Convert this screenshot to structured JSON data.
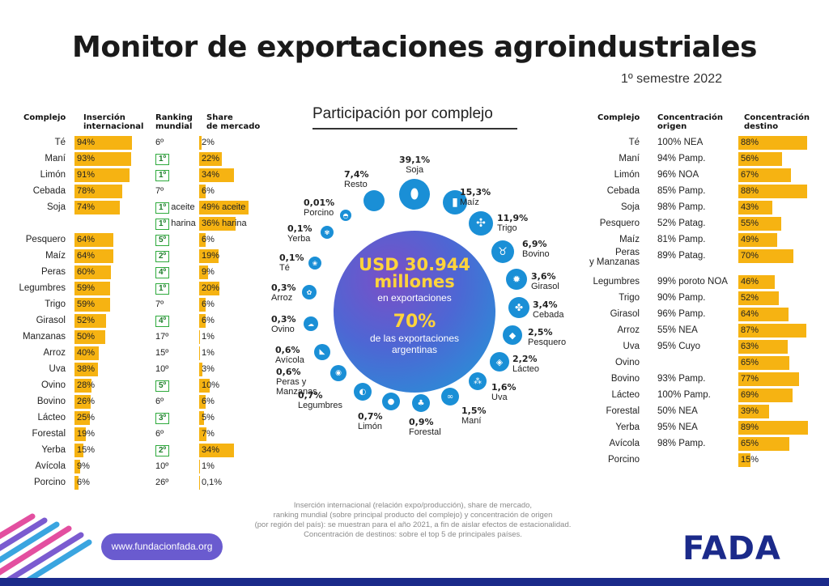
{
  "title": "Monitor de exportaciones agroindustriales",
  "subtitle": "1º semestre 2022",
  "left_headers": {
    "complejo": "Complejo",
    "insercion": [
      "Inserción",
      "internacional"
    ],
    "ranking": [
      "Ranking",
      "mundial"
    ],
    "share": [
      "Share",
      "de mercado"
    ]
  },
  "right_headers": {
    "complejo": "Complejo",
    "origen": [
      "Concentración",
      "origen"
    ],
    "destino": [
      "Concentración",
      "destino"
    ]
  },
  "center": {
    "title": "Participación por complejo",
    "amount": [
      "USD 30.944",
      "millones"
    ],
    "amount_sub": "en exportaciones",
    "pct": "70%",
    "pct_sub": [
      "de las exportaciones",
      "argentinas"
    ]
  },
  "chart_data": [
    {
      "type": "table",
      "title": "",
      "columns": [
        "Complejo",
        "Inserción internacional",
        "Ranking mundial",
        "Share de mercado"
      ],
      "rows": [
        {
          "name": "Té",
          "insercion": 94,
          "insercion_label": "94%",
          "rank": "6º",
          "rank_top": false,
          "share": 2,
          "share_label": "2%"
        },
        {
          "name": "Maní",
          "insercion": 93,
          "insercion_label": "93%",
          "rank": "1º",
          "rank_top": true,
          "share": 22,
          "share_label": "22%"
        },
        {
          "name": "Limón",
          "insercion": 91,
          "insercion_label": "91%",
          "rank": "1º",
          "rank_top": true,
          "share": 34,
          "share_label": "34%"
        },
        {
          "name": "Cebada",
          "insercion": 78,
          "insercion_label": "78%",
          "rank": "7º",
          "rank_top": false,
          "share": 6,
          "share_label": "6%"
        },
        {
          "name": "Soja",
          "insercion": 74,
          "insercion_label": "74%",
          "rank": "1º",
          "rank_top": true,
          "rank_suffix": "aceite",
          "share": 49,
          "share_label": "49% aceite"
        },
        {
          "name": "",
          "insercion": null,
          "insercion_label": "",
          "rank": "1º",
          "rank_top": true,
          "rank_suffix": "harina",
          "share": 36,
          "share_label": "36% harina"
        },
        {
          "name": "Pesquero",
          "insercion": 64,
          "insercion_label": "64%",
          "rank": "5º",
          "rank_top": true,
          "share": 6,
          "share_label": "6%"
        },
        {
          "name": "Maíz",
          "insercion": 64,
          "insercion_label": "64%",
          "rank": "2º",
          "rank_top": true,
          "share": 19,
          "share_label": "19%"
        },
        {
          "name": "Peras",
          "insercion": 60,
          "insercion_label": "60%",
          "rank": "4º",
          "rank_top": true,
          "share": 9,
          "share_label": "9%"
        },
        {
          "name": "Legumbres",
          "insercion": 59,
          "insercion_label": "59%",
          "rank": "1º",
          "rank_top": true,
          "share": 20,
          "share_label": "20%"
        },
        {
          "name": "Trigo",
          "insercion": 59,
          "insercion_label": "59%",
          "rank": "7º",
          "rank_top": false,
          "share": 6,
          "share_label": "6%"
        },
        {
          "name": "Girasol",
          "insercion": 52,
          "insercion_label": "52%",
          "rank": "4º",
          "rank_top": true,
          "share": 6,
          "share_label": "6%"
        },
        {
          "name": "Manzanas",
          "insercion": 50,
          "insercion_label": "50%",
          "rank": "17º",
          "rank_top": false,
          "share": 1,
          "share_label": "1%"
        },
        {
          "name": "Arroz",
          "insercion": 40,
          "insercion_label": "40%",
          "rank": "15º",
          "rank_top": false,
          "share": 1,
          "share_label": "1%"
        },
        {
          "name": "Uva",
          "insercion": 38,
          "insercion_label": "38%",
          "rank": "10º",
          "rank_top": false,
          "share": 3,
          "share_label": "3%"
        },
        {
          "name": "Ovino",
          "insercion": 28,
          "insercion_label": "28%",
          "rank": "5º",
          "rank_top": true,
          "share": 10,
          "share_label": "10%"
        },
        {
          "name": "Bovino",
          "insercion": 26,
          "insercion_label": "26%",
          "rank": "6º",
          "rank_top": false,
          "share": 6,
          "share_label": "6%"
        },
        {
          "name": "Lácteo",
          "insercion": 25,
          "insercion_label": "25%",
          "rank": "3º",
          "rank_top": true,
          "share": 5,
          "share_label": "5%"
        },
        {
          "name": "Forestal",
          "insercion": 19,
          "insercion_label": "19%",
          "rank": "6º",
          "rank_top": false,
          "share": 7,
          "share_label": "7%"
        },
        {
          "name": "Yerba",
          "insercion": 15,
          "insercion_label": "15%",
          "rank": "2º",
          "rank_top": true,
          "share": 34,
          "share_label": "34%"
        },
        {
          "name": "Avícola",
          "insercion": 9,
          "insercion_label": "9%",
          "rank": "10º",
          "rank_top": false,
          "share": 1,
          "share_label": "1%"
        },
        {
          "name": "Porcino",
          "insercion": 6,
          "insercion_label": "6%",
          "rank": "26º",
          "rank_top": false,
          "share": 0.1,
          "share_label": "0,1%"
        }
      ]
    },
    {
      "type": "pie",
      "title": "Participación por complejo",
      "slices": [
        {
          "name": "Soja",
          "pct": 39.1,
          "label": "39,1%",
          "icon": "soybean-icon"
        },
        {
          "name": "Maíz",
          "pct": 15.3,
          "label": "15,3%",
          "icon": "corn-icon"
        },
        {
          "name": "Trigo",
          "pct": 11.9,
          "label": "11,9%",
          "icon": "wheat-icon"
        },
        {
          "name": "Bovino",
          "pct": 6.9,
          "label": "6,9%",
          "icon": "cow-icon"
        },
        {
          "name": "Girasol",
          "pct": 3.6,
          "label": "3,6%",
          "icon": "sunflower-icon"
        },
        {
          "name": "Cebada",
          "pct": 3.4,
          "label": "3,4%",
          "icon": "barley-icon"
        },
        {
          "name": "Pesquero",
          "pct": 2.5,
          "label": "2,5%",
          "icon": "fish-icon"
        },
        {
          "name": "Lácteo",
          "pct": 2.2,
          "label": "2,2%",
          "icon": "dairy-icon"
        },
        {
          "name": "Uva",
          "pct": 1.6,
          "label": "1,6%",
          "icon": "grape-icon"
        },
        {
          "name": "Maní",
          "pct": 1.5,
          "label": "1,5%",
          "icon": "peanut-icon"
        },
        {
          "name": "Forestal",
          "pct": 0.9,
          "label": "0,9%",
          "icon": "tree-icon"
        },
        {
          "name": "Limón",
          "pct": 0.7,
          "label": "0,7%",
          "icon": "lemon-icon"
        },
        {
          "name": "Legumbres",
          "pct": 0.7,
          "label": "0,7%",
          "icon": "legume-icon"
        },
        {
          "name": "Peras y Manzanas",
          "pct": 0.6,
          "label": "0,6%",
          "icon": "apple-icon"
        },
        {
          "name": "Avícola",
          "pct": 0.6,
          "label": "0,6%",
          "icon": "chicken-icon"
        },
        {
          "name": "Ovino",
          "pct": 0.3,
          "label": "0,3%",
          "icon": "sheep-icon"
        },
        {
          "name": "Arroz",
          "pct": 0.3,
          "label": "0,3%",
          "icon": "rice-icon"
        },
        {
          "name": "Té",
          "pct": 0.1,
          "label": "0,1%",
          "icon": "tea-icon"
        },
        {
          "name": "Yerba",
          "pct": 0.1,
          "label": "0,1%",
          "icon": "yerba-icon"
        },
        {
          "name": "Porcino",
          "pct": 0.01,
          "label": "0,01%",
          "icon": "pig-icon"
        },
        {
          "name": "Resto",
          "pct": 7.4,
          "label": "7,4%",
          "icon": "rest-icon"
        }
      ]
    },
    {
      "type": "table",
      "title": "",
      "columns": [
        "Complejo",
        "Concentración origen",
        "Concentración destino"
      ],
      "rows": [
        {
          "name": "Té",
          "origen": "100% NEA",
          "destino": 88,
          "destino_label": "88%"
        },
        {
          "name": "Maní",
          "origen": "94% Pamp.",
          "destino": 56,
          "destino_label": "56%"
        },
        {
          "name": "Limón",
          "origen": "96% NOA",
          "destino": 67,
          "destino_label": "67%"
        },
        {
          "name": "Cebada",
          "origen": "85% Pamp.",
          "destino": 88,
          "destino_label": "88%"
        },
        {
          "name": "Soja",
          "origen": "98% Pamp.",
          "destino": 43,
          "destino_label": "43%"
        },
        {
          "name": "Pesquero",
          "origen": "52% Patag.",
          "destino": 55,
          "destino_label": "55%"
        },
        {
          "name": "Maíz",
          "origen": "81% Pamp.",
          "destino": 49,
          "destino_label": "49%"
        },
        {
          "name": "Peras y Manzanas",
          "origen": "89% Patag.",
          "destino": 70,
          "destino_label": "70%"
        },
        {
          "name": "Legumbres",
          "origen": "99% poroto NOA",
          "destino": 46,
          "destino_label": "46%"
        },
        {
          "name": "Trigo",
          "origen": "90% Pamp.",
          "destino": 52,
          "destino_label": "52%"
        },
        {
          "name": "Girasol",
          "origen": "96% Pamp.",
          "destino": 64,
          "destino_label": "64%"
        },
        {
          "name": "Arroz",
          "origen": "55% NEA",
          "destino": 87,
          "destino_label": "87%"
        },
        {
          "name": "Uva",
          "origen": "95% Cuyo",
          "destino": 63,
          "destino_label": "63%"
        },
        {
          "name": "Ovino",
          "origen": "",
          "destino": 65,
          "destino_label": "65%"
        },
        {
          "name": "Bovino",
          "origen": "93% Pamp.",
          "destino": 77,
          "destino_label": "77%"
        },
        {
          "name": "Lácteo",
          "origen": "100% Pamp.",
          "destino": 69,
          "destino_label": "69%"
        },
        {
          "name": "Forestal",
          "origen": "50% NEA",
          "destino": 39,
          "destino_label": "39%"
        },
        {
          "name": "Yerba",
          "origen": "95% NEA",
          "destino": 89,
          "destino_label": "89%"
        },
        {
          "name": "Avícola",
          "origen": "98% Pamp.",
          "destino": 65,
          "destino_label": "65%"
        },
        {
          "name": "Porcino",
          "origen": "",
          "destino": 15,
          "destino_label": "15%"
        }
      ]
    }
  ],
  "footnote": [
    "Inserción internacional (relación expo/producción), share de mercado,",
    "ranking mundial (sobre principal producto del complejo) y concentración de origen",
    "(por región del país): se muestran para el año 2021, a fin de aislar efectos de estacionalidad.",
    "Concentración de destinos: sobre el top 5 de principales países."
  ],
  "url": "www.fundacionfada.org",
  "logo": "FADA",
  "colors": {
    "bar": "#f6b312",
    "rank_border": "#2eaa3c",
    "satellite": "#1a8fd6",
    "logo": "#1b2a8a"
  }
}
